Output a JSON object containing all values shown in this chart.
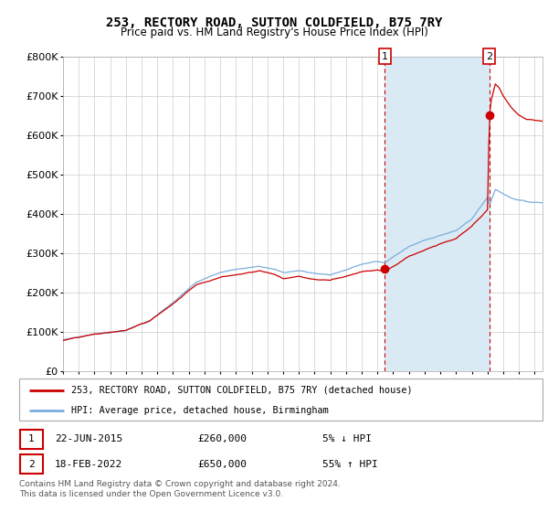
{
  "title": "253, RECTORY ROAD, SUTTON COLDFIELD, B75 7RY",
  "subtitle": "Price paid vs. HM Land Registry's House Price Index (HPI)",
  "legend_line1": "253, RECTORY ROAD, SUTTON COLDFIELD, B75 7RY (detached house)",
  "legend_line2": "HPI: Average price, detached house, Birmingham",
  "sale1_date_label": "22-JUN-2015",
  "sale1_price_label": "£260,000",
  "sale1_hpi_label": "5% ↓ HPI",
  "sale2_date_label": "18-FEB-2022",
  "sale2_price_label": "£650,000",
  "sale2_hpi_label": "55% ↑ HPI",
  "footnote": "Contains HM Land Registry data © Crown copyright and database right 2024.\nThis data is licensed under the Open Government Licence v3.0.",
  "red_color": "#cc0000",
  "blue_color": "#7aaddb",
  "shading_color": "#daeaf5",
  "grid_color": "#cccccc",
  "background_color": "#ffffff",
  "sale1_year": 2015.47,
  "sale1_price": 260000,
  "sale2_year": 2022.12,
  "sale2_price": 650000,
  "ylim": [
    0,
    800000
  ],
  "xlim_start": 1995,
  "xlim_end": 2025.5,
  "yticks": [
    0,
    100000,
    200000,
    300000,
    400000,
    500000,
    600000,
    700000,
    800000
  ],
  "ylabels": [
    "£0",
    "£100K",
    "£200K",
    "£300K",
    "£400K",
    "£500K",
    "£600K",
    "£700K",
    "£800K"
  ]
}
